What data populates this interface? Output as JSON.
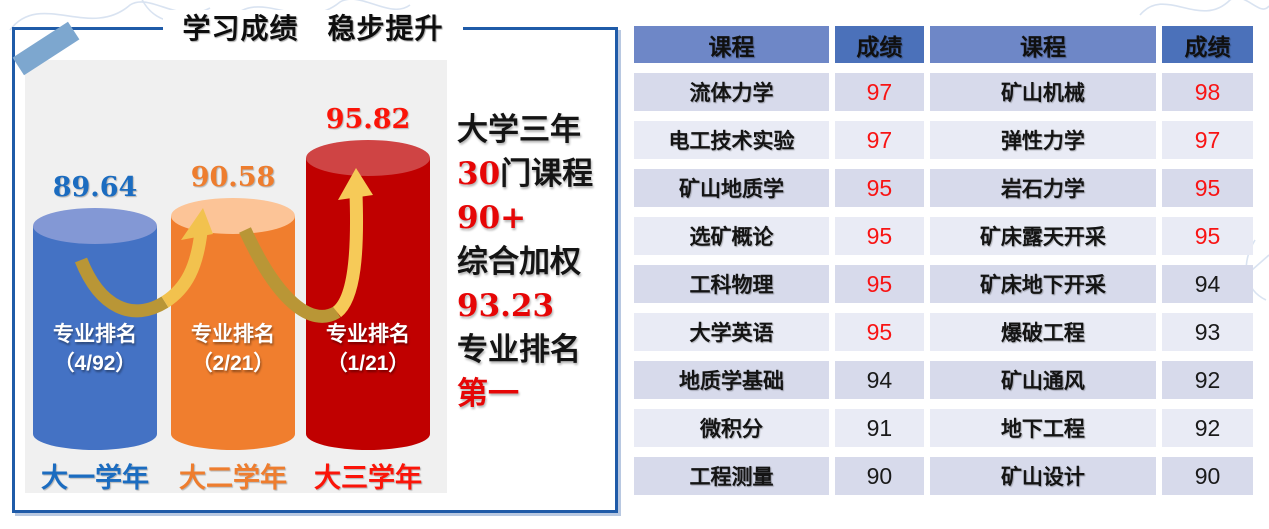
{
  "slide": {
    "title": "学习成绩　稳步提升",
    "summary_lines": [
      [
        {
          "text": "大学三年",
          "color": "#141414"
        }
      ],
      [
        {
          "text": "30",
          "color": "#e60606"
        },
        {
          "text": "门课程",
          "color": "#141414"
        }
      ],
      [
        {
          "text": "90+",
          "color": "#e60606"
        }
      ],
      [
        {
          "text": "综合加权",
          "color": "#141414"
        }
      ],
      [
        {
          "text": "93.23",
          "color": "#e60606"
        }
      ],
      [
        {
          "text": "专业排名",
          "color": "#141414"
        }
      ],
      [
        {
          "text": "第一",
          "color": "#e60606"
        }
      ]
    ]
  },
  "colors": {
    "frame_border": "#1f5ba8",
    "panel_bg": "#f0f0f0",
    "header_course_bg": "#6e87c7",
    "header_score_bg": "#4b71ba",
    "row_odd_bg": "#d7daeb",
    "row_even_bg": "#e9ebf5",
    "score_highlight": "#f81414",
    "arrow_gold_dark": "#b99636",
    "arrow_gold_light": "#f4c654"
  },
  "chart_data": [
    {
      "type": "bar",
      "title": "学习成绩　稳步提升",
      "categories": [
        "大一学年",
        "大二学年",
        "大三学年"
      ],
      "values": [
        89.64,
        90.58,
        95.82
      ],
      "annotations": [
        "专业排名（4/92）",
        "专业排名（2/21）",
        "专业排名（1/21）"
      ],
      "bars": [
        {
          "year": "大一学年",
          "value": "89.64",
          "rank_title": "专业排名",
          "rank_value": "（4/92）",
          "body_color": "#4472c4",
          "top_color": "#8398d5",
          "label_color": "#1b6cc0"
        },
        {
          "year": "大二学年",
          "value": "90.58",
          "rank_title": "专业排名",
          "rank_value": "（2/21）",
          "body_color": "#f07e2e",
          "top_color": "#fcc497",
          "label_color": "#ee7d2e"
        },
        {
          "year": "大三学年",
          "value": "95.82",
          "rank_title": "专业排名",
          "rank_value": "（1/21）",
          "body_color": "#c00000",
          "top_color": "#cf4444",
          "label_color": "#fb1408"
        }
      ]
    },
    {
      "type": "table",
      "headers": [
        "课程",
        "成绩",
        "课程",
        "成绩"
      ],
      "rows": [
        [
          "流体力学",
          "97",
          "矿山机械",
          "98"
        ],
        [
          "电工技术实验",
          "97",
          "弹性力学",
          "97"
        ],
        [
          "矿山地质学",
          "95",
          "岩石力学",
          "95"
        ],
        [
          "选矿概论",
          "95",
          "矿床露天开采",
          "95"
        ],
        [
          "工科物理",
          "95",
          "矿床地下开采",
          "94"
        ],
        [
          "大学英语",
          "95",
          "爆破工程",
          "93"
        ],
        [
          "地质学基础",
          "94",
          "矿山通风",
          "92"
        ],
        [
          "微积分",
          "91",
          "地下工程",
          "92"
        ],
        [
          "工程测量",
          "90",
          "矿山设计",
          "90"
        ]
      ]
    }
  ]
}
